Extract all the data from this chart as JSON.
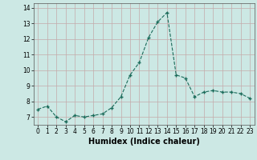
{
  "x": [
    0,
    1,
    2,
    3,
    4,
    5,
    6,
    7,
    8,
    9,
    10,
    11,
    12,
    13,
    14,
    15,
    16,
    17,
    18,
    19,
    20,
    21,
    22,
    23
  ],
  "y": [
    7.5,
    7.7,
    7.0,
    6.7,
    7.1,
    7.0,
    7.1,
    7.2,
    7.6,
    8.3,
    9.7,
    10.5,
    12.1,
    13.1,
    13.7,
    9.7,
    9.5,
    8.3,
    8.6,
    8.7,
    8.6,
    8.6,
    8.5,
    8.2
  ],
  "xlabel": "Humidex (Indice chaleur)",
  "xlim": [
    -0.5,
    23.5
  ],
  "ylim": [
    6.5,
    14.3
  ],
  "yticks": [
    7,
    8,
    9,
    10,
    11,
    12,
    13,
    14
  ],
  "xticks": [
    0,
    1,
    2,
    3,
    4,
    5,
    6,
    7,
    8,
    9,
    10,
    11,
    12,
    13,
    14,
    15,
    16,
    17,
    18,
    19,
    20,
    21,
    22,
    23
  ],
  "line_color": "#1a6b5a",
  "bg_color": "#cce8e4",
  "grid_color": "#c4aaaa",
  "xlabel_fontsize": 7,
  "tick_fontsize": 5.5
}
